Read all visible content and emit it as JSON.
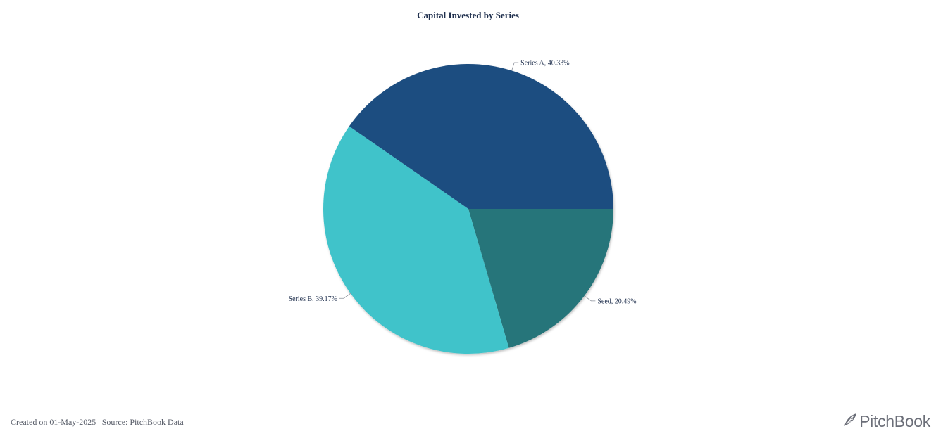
{
  "chart_data": {
    "type": "pie",
    "title": "Capital Invested by Series",
    "slices": [
      {
        "name": "Series A",
        "value": 40.33,
        "label": "Series A, 40.33%",
        "color": "#1f4e80"
      },
      {
        "name": "Seed",
        "value": 20.49,
        "label": "Seed, 20.49%",
        "color": "#26747a"
      },
      {
        "name": "Series B",
        "value": 39.17,
        "label": "Series B, 39.17%",
        "color": "#40c3ca"
      }
    ]
  },
  "footer": {
    "note": "Created on 01-May-2025 | Source: PitchBook Data"
  },
  "brand": {
    "name": "PitchBook",
    "icon": "pitchbook-leaf-icon",
    "color": "#6b6e78"
  }
}
